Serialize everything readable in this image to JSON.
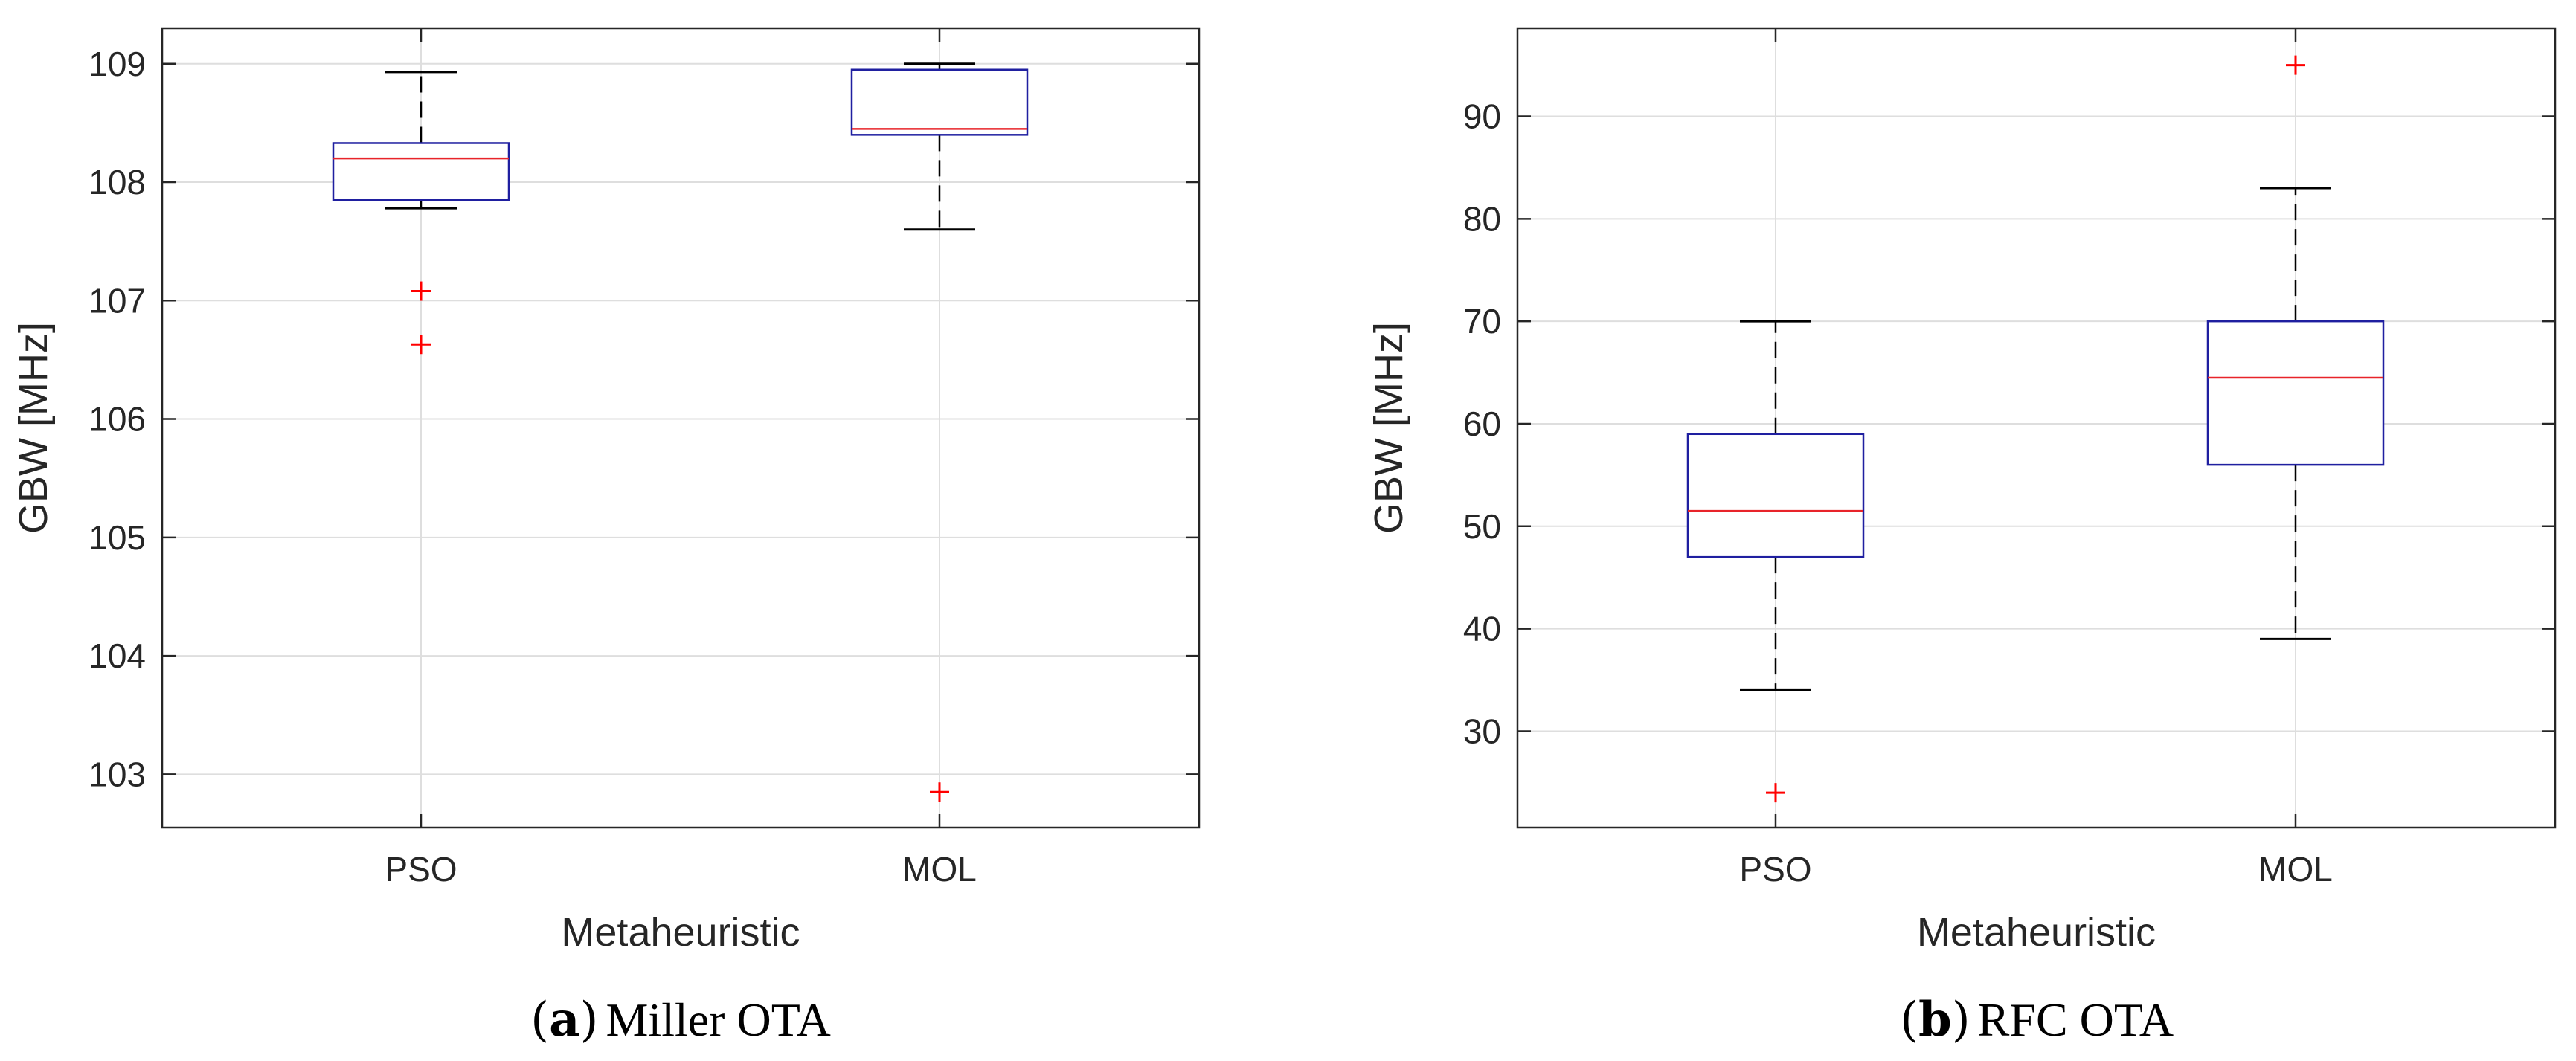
{
  "chart_data": [
    {
      "type": "boxplot",
      "caption_letter": "a",
      "caption_title": "Miller OTA",
      "xlabel": "Metaheuristic",
      "ylabel": "GBW  [MHz]",
      "ylim": [
        102.55,
        109.3
      ],
      "yticks": [
        103,
        104,
        105,
        106,
        107,
        108,
        109
      ],
      "grid": true,
      "categories": [
        "PSO",
        "MOL"
      ],
      "boxes": [
        {
          "category": "PSO",
          "whisker_low": 107.78,
          "q1": 107.85,
          "median": 108.2,
          "q3": 108.33,
          "whisker_high": 108.93,
          "outliers": [
            107.08,
            106.63
          ]
        },
        {
          "category": "MOL",
          "whisker_low": 107.6,
          "q1": 108.4,
          "median": 108.45,
          "q3": 108.95,
          "whisker_high": 109.0,
          "outliers": [
            102.85
          ]
        }
      ]
    },
    {
      "type": "boxplot",
      "caption_letter": "b",
      "caption_title": "RFC OTA",
      "xlabel": "Metaheuristic",
      "ylabel": "GBW  [MHz]",
      "ylim": [
        20.6,
        98.6
      ],
      "yticks": [
        30,
        40,
        50,
        60,
        70,
        80,
        90
      ],
      "grid": true,
      "categories": [
        "PSO",
        "MOL"
      ],
      "boxes": [
        {
          "category": "PSO",
          "whisker_low": 34,
          "q1": 47,
          "median": 51.5,
          "q3": 59,
          "whisker_high": 70,
          "outliers": [
            24
          ]
        },
        {
          "category": "MOL",
          "whisker_low": 39,
          "q1": 56,
          "median": 64.5,
          "q3": 70,
          "whisker_high": 83,
          "outliers": [
            95
          ]
        }
      ]
    }
  ],
  "colors": {
    "box": "#1f1fa0",
    "median": "#e8242a",
    "outlier": "#ff0000",
    "whisker": "#000000",
    "grid": "#dedede",
    "axis": "#262626"
  }
}
